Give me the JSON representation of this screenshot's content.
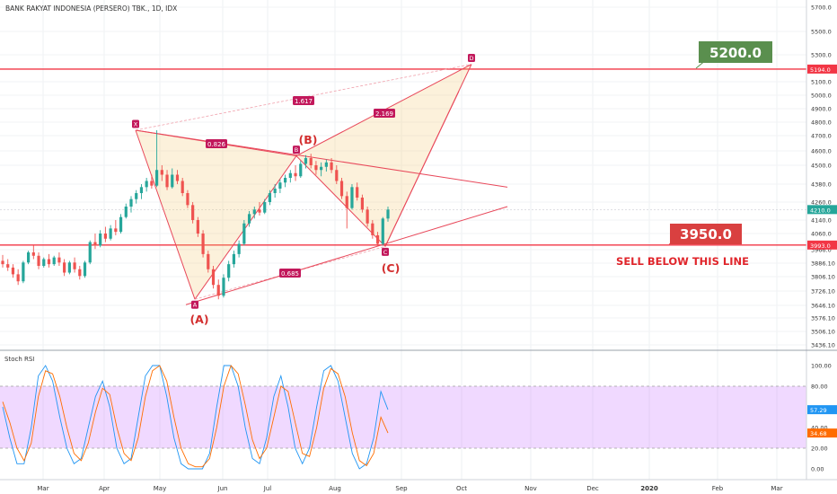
{
  "header": {
    "title": "BANK RAKYAT INDONESIA (PERSERO) TBK., 1D, IDX"
  },
  "chart_data": [
    {
      "type": "candlestick",
      "title": "BANK RAKYAT INDONESIA (PERSERO) TBK., 1D, IDX",
      "interval": "1D",
      "exchange": "IDX",
      "x_ticks": [
        "Mar",
        "Apr",
        "May",
        "Jun",
        "Jul",
        "Aug",
        "Sep",
        "Oct",
        "Nov",
        "Dec",
        "2020",
        "Feb",
        "Mar"
      ],
      "y_ticks": [
        5700.0,
        5500.0,
        5300.0,
        5100.0,
        5000.0,
        4900.0,
        4800.0,
        4700.0,
        4600.0,
        4500.0,
        4380.0,
        4260.0,
        4140.0,
        4060.0,
        3966.0,
        3886.1,
        3806.1,
        3726.1,
        3646.1,
        3576.1,
        3506.1,
        3436.1
      ],
      "ylim": [
        3400,
        5800
      ],
      "price_badges": [
        {
          "label": "5194.0",
          "value": 5194.0,
          "color": "#f23645"
        },
        {
          "label": "4210.0",
          "value": 4210.0,
          "color": "#26a69a"
        },
        {
          "label": "3993.0",
          "value": 3993.0,
          "color": "#f23645"
        }
      ],
      "horizontal_lines": [
        {
          "value": 5194.0,
          "color": "#f23645"
        },
        {
          "value": 3993.0,
          "color": "#f23645"
        }
      ],
      "pattern_points": [
        {
          "label": "X",
          "value": 4740
        },
        {
          "label": "A",
          "value": 3680
        },
        {
          "label": "B",
          "value": 4565
        },
        {
          "label": "C",
          "value": 3985
        },
        {
          "label": "D",
          "value": 5230
        }
      ],
      "ratios": [
        {
          "label": "1.617"
        },
        {
          "label": "0.826"
        },
        {
          "label": "2.169"
        },
        {
          "label": "0.685"
        }
      ],
      "annotations": [
        {
          "text": "(A)",
          "color": "#d32f2f"
        },
        {
          "text": "(B)",
          "color": "#d32f2f"
        },
        {
          "text": "(C)",
          "color": "#d32f2f"
        },
        {
          "text": "5200.0",
          "color": "#5a8f4e"
        },
        {
          "text": "3950.0",
          "color": "#d94040"
        },
        {
          "text": "SELL BELOW THIS LINE",
          "color": "#e0252b"
        }
      ],
      "candles": [
        {
          "o": 3900,
          "h": 3935,
          "l": 3860,
          "c": 3880
        },
        {
          "o": 3880,
          "h": 3910,
          "l": 3840,
          "c": 3860
        },
        {
          "o": 3860,
          "h": 3880,
          "l": 3800,
          "c": 3820
        },
        {
          "o": 3820,
          "h": 3850,
          "l": 3760,
          "c": 3780
        },
        {
          "o": 3780,
          "h": 3900,
          "l": 3770,
          "c": 3890
        },
        {
          "o": 3890,
          "h": 3960,
          "l": 3880,
          "c": 3950
        },
        {
          "o": 3950,
          "h": 3990,
          "l": 3910,
          "c": 3930
        },
        {
          "o": 3930,
          "h": 3950,
          "l": 3850,
          "c": 3870
        },
        {
          "o": 3870,
          "h": 3920,
          "l": 3860,
          "c": 3910
        },
        {
          "o": 3910,
          "h": 3940,
          "l": 3860,
          "c": 3880
        },
        {
          "o": 3880,
          "h": 3930,
          "l": 3870,
          "c": 3920
        },
        {
          "o": 3920,
          "h": 3950,
          "l": 3870,
          "c": 3890
        },
        {
          "o": 3890,
          "h": 3910,
          "l": 3810,
          "c": 3830
        },
        {
          "o": 3830,
          "h": 3900,
          "l": 3820,
          "c": 3890
        },
        {
          "o": 3890,
          "h": 3920,
          "l": 3830,
          "c": 3850
        },
        {
          "o": 3850,
          "h": 3870,
          "l": 3790,
          "c": 3810
        },
        {
          "o": 3810,
          "h": 3900,
          "l": 3800,
          "c": 3890
        },
        {
          "o": 3890,
          "h": 4020,
          "l": 3880,
          "c": 4010
        },
        {
          "o": 4010,
          "h": 4060,
          "l": 3970,
          "c": 3990
        },
        {
          "o": 3990,
          "h": 4080,
          "l": 3980,
          "c": 4060
        },
        {
          "o": 4060,
          "h": 4100,
          "l": 4010,
          "c": 4030
        },
        {
          "o": 4030,
          "h": 4110,
          "l": 4020,
          "c": 4090
        },
        {
          "o": 4090,
          "h": 4140,
          "l": 4050,
          "c": 4070
        },
        {
          "o": 4070,
          "h": 4180,
          "l": 4060,
          "c": 4160
        },
        {
          "o": 4160,
          "h": 4250,
          "l": 4150,
          "c": 4230
        },
        {
          "o": 4230,
          "h": 4300,
          "l": 4190,
          "c": 4280
        },
        {
          "o": 4280,
          "h": 4340,
          "l": 4250,
          "c": 4320
        },
        {
          "o": 4320,
          "h": 4380,
          "l": 4280,
          "c": 4360
        },
        {
          "o": 4360,
          "h": 4420,
          "l": 4330,
          "c": 4400
        },
        {
          "o": 4400,
          "h": 4440,
          "l": 4350,
          "c": 4370
        },
        {
          "o": 4370,
          "h": 4740,
          "l": 4360,
          "c": 4470
        },
        {
          "o": 4470,
          "h": 4500,
          "l": 4400,
          "c": 4440
        },
        {
          "o": 4440,
          "h": 4470,
          "l": 4340,
          "c": 4360
        },
        {
          "o": 4360,
          "h": 4480,
          "l": 4350,
          "c": 4440
        },
        {
          "o": 4440,
          "h": 4470,
          "l": 4380,
          "c": 4400
        },
        {
          "o": 4400,
          "h": 4420,
          "l": 4300,
          "c": 4320
        },
        {
          "o": 4320,
          "h": 4340,
          "l": 4220,
          "c": 4240
        },
        {
          "o": 4240,
          "h": 4260,
          "l": 4120,
          "c": 4140
        },
        {
          "o": 4140,
          "h": 4160,
          "l": 4040,
          "c": 4060
        },
        {
          "o": 4060,
          "h": 4080,
          "l": 3920,
          "c": 3940
        },
        {
          "o": 3940,
          "h": 3960,
          "l": 3830,
          "c": 3850
        },
        {
          "o": 3850,
          "h": 3870,
          "l": 3740,
          "c": 3760
        },
        {
          "o": 3760,
          "h": 3790,
          "l": 3680,
          "c": 3700
        },
        {
          "o": 3700,
          "h": 3820,
          "l": 3690,
          "c": 3800
        },
        {
          "o": 3800,
          "h": 3900,
          "l": 3780,
          "c": 3880
        },
        {
          "o": 3880,
          "h": 3960,
          "l": 3860,
          "c": 3940
        },
        {
          "o": 3940,
          "h": 4020,
          "l": 3920,
          "c": 4000
        },
        {
          "o": 4000,
          "h": 4140,
          "l": 3990,
          "c": 4120
        },
        {
          "o": 4120,
          "h": 4200,
          "l": 4100,
          "c": 4180
        },
        {
          "o": 4180,
          "h": 4230,
          "l": 4150,
          "c": 4210
        },
        {
          "o": 4210,
          "h": 4260,
          "l": 4170,
          "c": 4190
        },
        {
          "o": 4190,
          "h": 4280,
          "l": 4180,
          "c": 4260
        },
        {
          "o": 4260,
          "h": 4340,
          "l": 4240,
          "c": 4320
        },
        {
          "o": 4320,
          "h": 4380,
          "l": 4290,
          "c": 4350
        },
        {
          "o": 4350,
          "h": 4410,
          "l": 4320,
          "c": 4390
        },
        {
          "o": 4390,
          "h": 4440,
          "l": 4360,
          "c": 4420
        },
        {
          "o": 4420,
          "h": 4470,
          "l": 4390,
          "c": 4450
        },
        {
          "o": 4450,
          "h": 4500,
          "l": 4400,
          "c": 4430
        },
        {
          "o": 4430,
          "h": 4530,
          "l": 4420,
          "c": 4510
        },
        {
          "o": 4510,
          "h": 4570,
          "l": 4480,
          "c": 4550
        },
        {
          "o": 4550,
          "h": 4580,
          "l": 4480,
          "c": 4500
        },
        {
          "o": 4500,
          "h": 4530,
          "l": 4440,
          "c": 4470
        },
        {
          "o": 4470,
          "h": 4520,
          "l": 4430,
          "c": 4490
        },
        {
          "o": 4490,
          "h": 4540,
          "l": 4460,
          "c": 4520
        },
        {
          "o": 4520,
          "h": 4550,
          "l": 4450,
          "c": 4470
        },
        {
          "o": 4470,
          "h": 4500,
          "l": 4380,
          "c": 4400
        },
        {
          "o": 4400,
          "h": 4420,
          "l": 4280,
          "c": 4300
        },
        {
          "o": 4300,
          "h": 4330,
          "l": 4090,
          "c": 4220
        },
        {
          "o": 4220,
          "h": 4380,
          "l": 4210,
          "c": 4360
        },
        {
          "o": 4360,
          "h": 4390,
          "l": 4270,
          "c": 4290
        },
        {
          "o": 4290,
          "h": 4310,
          "l": 4190,
          "c": 4210
        },
        {
          "o": 4210,
          "h": 4230,
          "l": 4100,
          "c": 4120
        },
        {
          "o": 4120,
          "h": 4140,
          "l": 4030,
          "c": 4050
        },
        {
          "o": 4050,
          "h": 4070,
          "l": 3985,
          "c": 4000
        },
        {
          "o": 4000,
          "h": 4160,
          "l": 3990,
          "c": 4150
        },
        {
          "o": 4150,
          "h": 4230,
          "l": 4130,
          "c": 4210
        }
      ]
    },
    {
      "type": "line",
      "title": "Stoch RSI",
      "ylim": [
        -8,
        112
      ],
      "y_ticks": [
        100.0,
        80.0,
        40.0,
        20.0,
        0.0
      ],
      "band": [
        20,
        80
      ],
      "value_badges": [
        {
          "label": "57.29",
          "value": 57.29,
          "color": "#2196f3"
        },
        {
          "label": "34.68",
          "value": 34.68,
          "color": "#ff6d00"
        }
      ],
      "series": [
        {
          "color": "#2196f3",
          "values": [
            60,
            30,
            5,
            5,
            40,
            90,
            100,
            85,
            50,
            20,
            5,
            10,
            40,
            70,
            85,
            60,
            20,
            5,
            10,
            50,
            90,
            100,
            100,
            70,
            30,
            5,
            0,
            0,
            0,
            15,
            60,
            100,
            100,
            80,
            40,
            10,
            5,
            30,
            70,
            90,
            60,
            20,
            5,
            20,
            60,
            95,
            100,
            85,
            50,
            15,
            0,
            5,
            30,
            75,
            57.29
          ]
        },
        {
          "color": "#ff6d00",
          "values": [
            65,
            45,
            20,
            8,
            25,
            70,
            95,
            92,
            70,
            40,
            15,
            8,
            25,
            55,
            78,
            72,
            40,
            15,
            8,
            30,
            70,
            95,
            100,
            85,
            50,
            20,
            5,
            2,
            2,
            10,
            40,
            80,
            100,
            92,
            62,
            28,
            10,
            20,
            50,
            80,
            75,
            45,
            15,
            12,
            40,
            78,
            97,
            92,
            70,
            35,
            8,
            3,
            15,
            50,
            34.68
          ]
        }
      ]
    }
  ]
}
